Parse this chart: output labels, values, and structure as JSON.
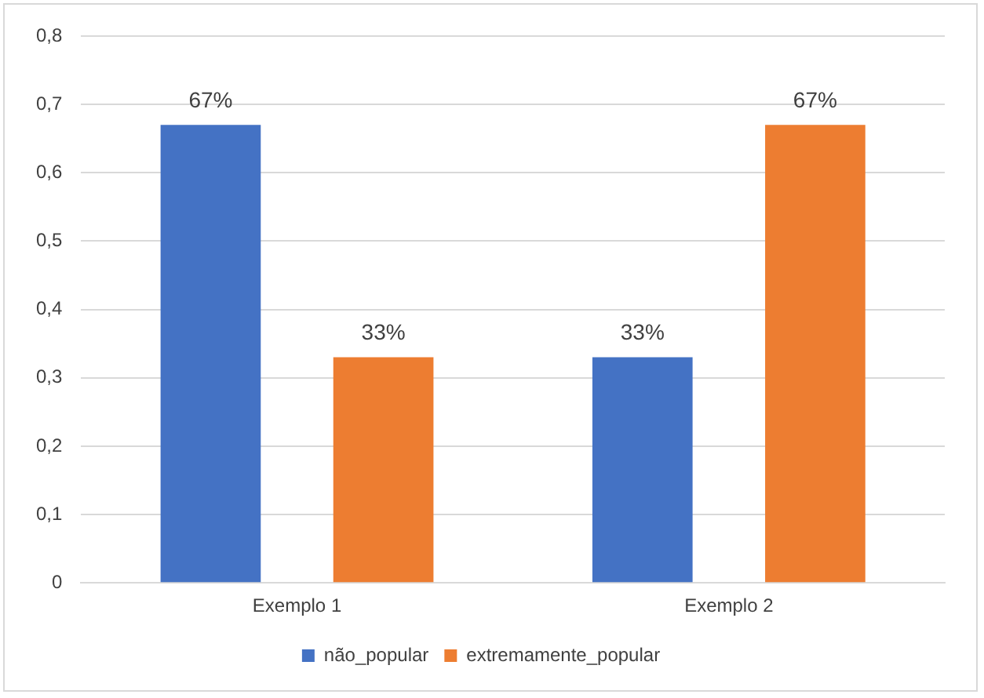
{
  "chart_data": {
    "type": "bar",
    "categories": [
      "Exemplo 1",
      "Exemplo 2"
    ],
    "series": [
      {
        "name": "não_popular",
        "color": "#4472c4",
        "values": [
          0.67,
          0.33
        ],
        "value_labels": [
          "67%",
          "33%"
        ]
      },
      {
        "name": "extremamente_popular",
        "color": "#ed7d31",
        "values": [
          0.33,
          0.67
        ],
        "value_labels": [
          "33%",
          "67%"
        ]
      }
    ],
    "ylim": [
      0,
      0.8
    ],
    "yticks": [
      0,
      {
        "value": 0.1,
        "label": "0,1"
      },
      {
        "value": 0.2,
        "label": "0,2"
      },
      {
        "value": 0.3,
        "label": "0,3"
      },
      {
        "value": 0.4,
        "label": "0,4"
      },
      {
        "value": 0.5,
        "label": "0,5"
      },
      {
        "value": 0.6,
        "label": "0,6"
      },
      {
        "value": 0.7,
        "label": "0,7"
      },
      {
        "value": 0.8,
        "label": "0,8"
      }
    ],
    "grid": "y",
    "legend": "bottom"
  }
}
